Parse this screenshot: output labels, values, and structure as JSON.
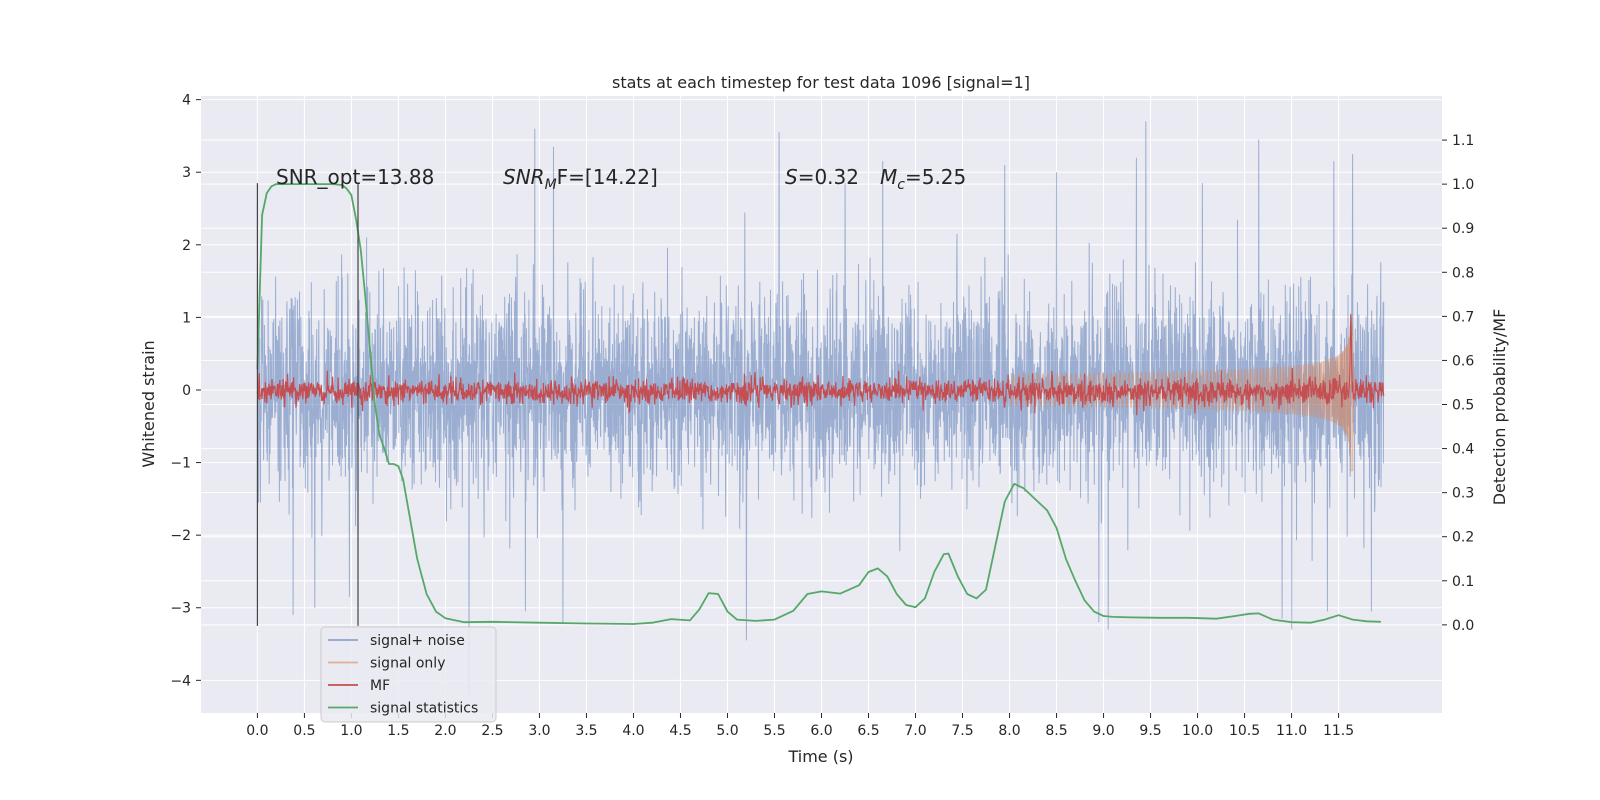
{
  "chart_data": {
    "type": "line",
    "title": "stats at each timestep for test data 1096 [signal=1]",
    "xlabel": "Time (s)",
    "ylabel_left": "Whitened strain",
    "ylabel_right": "Detection probability/MF",
    "xlim": [
      -0.6,
      12.6
    ],
    "ylim_left": [
      -4.45,
      4.05
    ],
    "ylim_right": [
      -0.2,
      1.2
    ],
    "x_ticks": [
      "0.0",
      "0.5",
      "1.0",
      "1.5",
      "2.0",
      "2.5",
      "3.0",
      "3.5",
      "4.0",
      "4.5",
      "5.0",
      "5.5",
      "6.0",
      "6.5",
      "7.0",
      "7.5",
      "8.0",
      "8.5",
      "9.0",
      "9.5",
      "10.0",
      "10.5",
      "11.0",
      "11.5"
    ],
    "y_ticks_left": [
      "4",
      "3",
      "2",
      "1",
      "0",
      "−1",
      "−2",
      "−3",
      "−4"
    ],
    "y_ticks_right": [
      "1.1",
      "1.0",
      "0.9",
      "0.8",
      "0.7",
      "0.6",
      "0.5",
      "0.4",
      "0.3",
      "0.2",
      "0.1",
      "0.0"
    ],
    "grid": true,
    "background": "#eaeaf2",
    "annotations": {
      "snr_opt": "SNR_opt=13.88",
      "snr_mf_main": "SNR",
      "snr_mf_sub": "M",
      "snr_mf_rest": "F=[14.22]",
      "s_main": "S",
      "s_rest": "=0.32",
      "mc_main": "M",
      "mc_sub": "c",
      "mc_rest": "=5.25"
    },
    "markers": [
      0.0,
      1.07
    ],
    "legend": {
      "placement": "lower-left",
      "entries": [
        {
          "label": "signal+ noise",
          "color": "#4c72b0"
        },
        {
          "label": "signal only",
          "color": "#dd8452"
        },
        {
          "label": "MF",
          "color": "#c44e52"
        },
        {
          "label": "signal statistics",
          "color": "#55a868"
        }
      ]
    },
    "series": [
      {
        "name": "signal+ noise",
        "color": "#4c72b0",
        "axis": "left",
        "x_range": [
          0.0,
          11.98
        ],
        "envelope_typical": [
          -1.6,
          1.6
        ],
        "extremes": [
          {
            "x": 0.0,
            "y": 2.55
          },
          {
            "x": 0.03,
            "y": -1.55
          },
          {
            "x": 0.38,
            "y": -3.1
          },
          {
            "x": 0.61,
            "y": -3.0
          },
          {
            "x": 0.98,
            "y": -2.85
          },
          {
            "x": 1.16,
            "y": 2.1
          },
          {
            "x": 2.25,
            "y": 2.95
          },
          {
            "x": 2.25,
            "y": -4.2
          },
          {
            "x": 2.95,
            "y": 3.6
          },
          {
            "x": 3.15,
            "y": 3.35
          },
          {
            "x": 2.85,
            "y": -3.05
          },
          {
            "x": 3.25,
            "y": -3.2
          },
          {
            "x": 5.2,
            "y": -3.45
          },
          {
            "x": 5.55,
            "y": 3.55
          },
          {
            "x": 6.25,
            "y": 2.85
          },
          {
            "x": 6.65,
            "y": 3.15
          },
          {
            "x": 7.95,
            "y": 3.1
          },
          {
            "x": 8.5,
            "y": 3.0
          },
          {
            "x": 8.95,
            "y": -3.2
          },
          {
            "x": 9.05,
            "y": -3.3
          },
          {
            "x": 9.35,
            "y": 3.2
          },
          {
            "x": 9.45,
            "y": 3.7
          },
          {
            "x": 10.05,
            "y": 2.85
          },
          {
            "x": 10.65,
            "y": 3.45
          },
          {
            "x": 10.9,
            "y": -3.15
          },
          {
            "x": 11.0,
            "y": -3.3
          },
          {
            "x": 11.45,
            "y": 3.15
          },
          {
            "x": 11.65,
            "y": 3.25
          },
          {
            "x": 11.38,
            "y": -3.05
          },
          {
            "x": 11.85,
            "y": -3.05
          }
        ]
      },
      {
        "name": "signal only",
        "color": "#dd8452",
        "axis": "left",
        "chirp_start": 8.0,
        "merger_time": 11.63,
        "amplitude_at_merger": 1.3
      },
      {
        "name": "MF",
        "color": "#c44e52",
        "axis": "right",
        "baseline": 0.53,
        "noise": 0.015,
        "peak": {
          "x": 11.63,
          "y": 0.7
        }
      },
      {
        "name": "signal statistics",
        "color": "#55a868",
        "axis": "right",
        "x": [
          0.0,
          0.05,
          0.1,
          0.15,
          0.2,
          0.3,
          0.4,
          0.5,
          0.6,
          0.7,
          0.8,
          0.9,
          0.95,
          1.0,
          1.05,
          1.1,
          1.15,
          1.2,
          1.25,
          1.3,
          1.35,
          1.4,
          1.45,
          1.5,
          1.55,
          1.6,
          1.7,
          1.8,
          1.9,
          2.0,
          2.2,
          2.5,
          3.0,
          3.5,
          4.0,
          4.2,
          4.4,
          4.6,
          4.7,
          4.8,
          4.9,
          5.0,
          5.1,
          5.3,
          5.5,
          5.7,
          5.85,
          6.0,
          6.2,
          6.4,
          6.5,
          6.6,
          6.7,
          6.8,
          6.9,
          7.0,
          7.1,
          7.2,
          7.3,
          7.35,
          7.45,
          7.55,
          7.65,
          7.75,
          7.85,
          7.95,
          8.05,
          8.15,
          8.2,
          8.3,
          8.4,
          8.5,
          8.6,
          8.7,
          8.8,
          8.9,
          9.0,
          9.1,
          9.3,
          9.6,
          9.9,
          10.2,
          10.4,
          10.55,
          10.65,
          10.8,
          11.0,
          11.2,
          11.35,
          11.5,
          11.65,
          11.8,
          11.95
        ],
        "y": [
          0.58,
          0.93,
          0.98,
          0.995,
          1.0,
          1.0,
          1.0,
          1.0,
          1.0,
          1.0,
          1.0,
          0.998,
          0.99,
          0.975,
          0.92,
          0.85,
          0.74,
          0.62,
          0.5,
          0.43,
          0.4,
          0.365,
          0.365,
          0.36,
          0.33,
          0.27,
          0.15,
          0.07,
          0.03,
          0.015,
          0.006,
          0.007,
          0.005,
          0.003,
          0.002,
          0.005,
          0.013,
          0.01,
          0.035,
          0.072,
          0.07,
          0.03,
          0.012,
          0.009,
          0.012,
          0.032,
          0.07,
          0.076,
          0.071,
          0.09,
          0.12,
          0.128,
          0.11,
          0.07,
          0.045,
          0.04,
          0.06,
          0.12,
          0.16,
          0.162,
          0.11,
          0.07,
          0.06,
          0.08,
          0.18,
          0.28,
          0.32,
          0.31,
          0.3,
          0.28,
          0.26,
          0.22,
          0.15,
          0.1,
          0.055,
          0.03,
          0.02,
          0.018,
          0.017,
          0.016,
          0.016,
          0.014,
          0.02,
          0.025,
          0.026,
          0.012,
          0.006,
          0.005,
          0.012,
          0.022,
          0.012,
          0.008,
          0.007
        ]
      }
    ]
  }
}
